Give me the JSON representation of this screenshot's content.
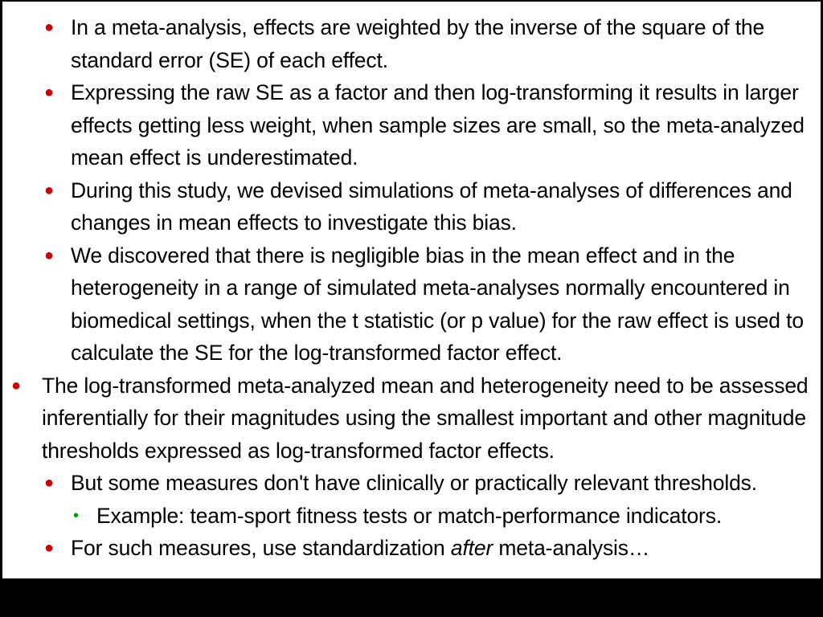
{
  "bullets": {
    "level1": "●",
    "level2": "●",
    "level3": "•"
  },
  "colors": {
    "bullet_red": "#cc0000",
    "bullet_green": "#009900",
    "text": "#000000",
    "background": "#ffffff",
    "frame": "#000000"
  },
  "items": [
    {
      "level": 2,
      "text": "In a meta-analysis, effects are weighted by the inverse of the square of the standard error (SE) of each effect."
    },
    {
      "level": 2,
      "text": "Expressing the raw SE as a factor and then log-transforming it results in larger effects getting less weight, when sample sizes are small, so the meta-analyzed mean effect is underestimated."
    },
    {
      "level": 2,
      "text": "During this study, we devised simulations of meta-analyses of differences and changes in mean effects to investigate this bias."
    },
    {
      "level": 2,
      "text": "We discovered that there is negligible bias in the mean effect and in the heterogeneity in a range of simulated meta-analyses normally encountered in biomedical settings, when the t statistic (or p value) for the raw effect is used to calculate the SE for the log-transformed factor effect."
    },
    {
      "level": 1,
      "text": "The log-transformed meta-analyzed mean and heterogeneity need to be assessed inferentially for their magnitudes using the smallest important and other magnitude thresholds expressed as log-transformed factor effects."
    },
    {
      "level": 2,
      "text": "But some measures don't have clinically or practically relevant thresholds."
    },
    {
      "level": 3,
      "text": "Example: team-sport fitness tests or match-performance indicators."
    },
    {
      "level": 2,
      "text_before": "For such measures, use standardization ",
      "text_em": "after",
      "text_after": " meta-analysis…"
    }
  ]
}
